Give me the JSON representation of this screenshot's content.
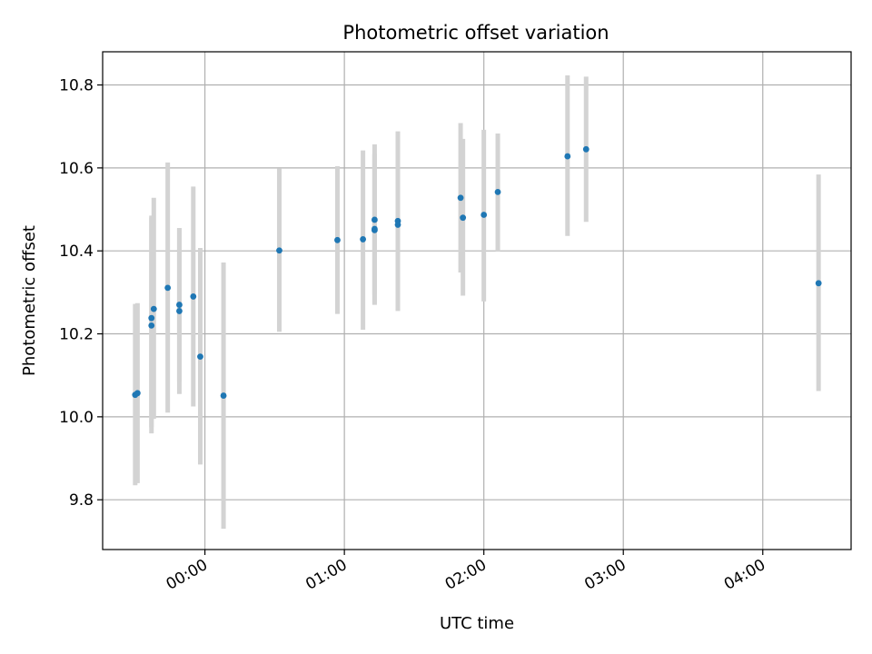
{
  "chart_data": {
    "type": "scatter",
    "title": "Photometric offset variation",
    "xlabel": "UTC time",
    "ylabel": "Photometric offset",
    "x_unit": "time (HH:MM)",
    "xlim": [
      "23:16",
      "04:38"
    ],
    "ylim": [
      9.68,
      10.88
    ],
    "x_ticks": [
      "00:00",
      "01:00",
      "02:00",
      "03:00",
      "04:00"
    ],
    "y_ticks": [
      9.8,
      10.0,
      10.2,
      10.4,
      10.6,
      10.8
    ],
    "grid": true,
    "colors": {
      "marker": "#1f77b4",
      "errorbar": "#d3d3d3",
      "grid": "#b0b0b0"
    },
    "points": [
      {
        "x": "23:30",
        "y": 10.053,
        "err_low": 9.835,
        "err_high": 10.272
      },
      {
        "x": "23:31",
        "y": 10.057,
        "err_low": 9.84,
        "err_high": 10.274
      },
      {
        "x": "23:37",
        "y": 10.22,
        "err_low": 9.96,
        "err_high": 10.48
      },
      {
        "x": "23:37",
        "y": 10.238,
        "err_low": 9.975,
        "err_high": 10.485
      },
      {
        "x": "23:38",
        "y": 10.26,
        "err_low": 9.995,
        "err_high": 10.528
      },
      {
        "x": "23:44",
        "y": 10.311,
        "err_low": 10.01,
        "err_high": 10.613
      },
      {
        "x": "23:49",
        "y": 10.27,
        "err_low": 10.085,
        "err_high": 10.455
      },
      {
        "x": "23:49",
        "y": 10.255,
        "err_low": 10.055,
        "err_high": 10.455
      },
      {
        "x": "23:55",
        "y": 10.29,
        "err_low": 10.025,
        "err_high": 10.555
      },
      {
        "x": "23:58",
        "y": 10.145,
        "err_low": 9.885,
        "err_high": 10.407
      },
      {
        "x": "00:08",
        "y": 10.051,
        "err_low": 9.73,
        "err_high": 10.372
      },
      {
        "x": "00:32",
        "y": 10.401,
        "err_low": 10.205,
        "err_high": 10.598
      },
      {
        "x": "00:57",
        "y": 10.426,
        "err_low": 10.248,
        "err_high": 10.604
      },
      {
        "x": "01:08",
        "y": 10.428,
        "err_low": 10.21,
        "err_high": 10.642
      },
      {
        "x": "01:13",
        "y": 10.475,
        "err_low": 10.295,
        "err_high": 10.657
      },
      {
        "x": "01:13",
        "y": 10.45,
        "err_low": 10.27,
        "err_high": 10.632
      },
      {
        "x": "01:13",
        "y": 10.453,
        "err_low": 10.272,
        "err_high": 10.635
      },
      {
        "x": "01:23",
        "y": 10.472,
        "err_low": 10.255,
        "err_high": 10.688
      },
      {
        "x": "01:23",
        "y": 10.463,
        "err_low": 10.258,
        "err_high": 10.67
      },
      {
        "x": "01:50",
        "y": 10.528,
        "err_low": 10.348,
        "err_high": 10.708
      },
      {
        "x": "01:51",
        "y": 10.48,
        "err_low": 10.292,
        "err_high": 10.67
      },
      {
        "x": "02:00",
        "y": 10.487,
        "err_low": 10.278,
        "err_high": 10.692
      },
      {
        "x": "02:06",
        "y": 10.542,
        "err_low": 10.398,
        "err_high": 10.683
      },
      {
        "x": "02:36",
        "y": 10.628,
        "err_low": 10.436,
        "err_high": 10.823
      },
      {
        "x": "02:44",
        "y": 10.645,
        "err_low": 10.47,
        "err_high": 10.82
      },
      {
        "x": "04:24",
        "y": 10.322,
        "err_low": 10.062,
        "err_high": 10.584
      }
    ]
  }
}
